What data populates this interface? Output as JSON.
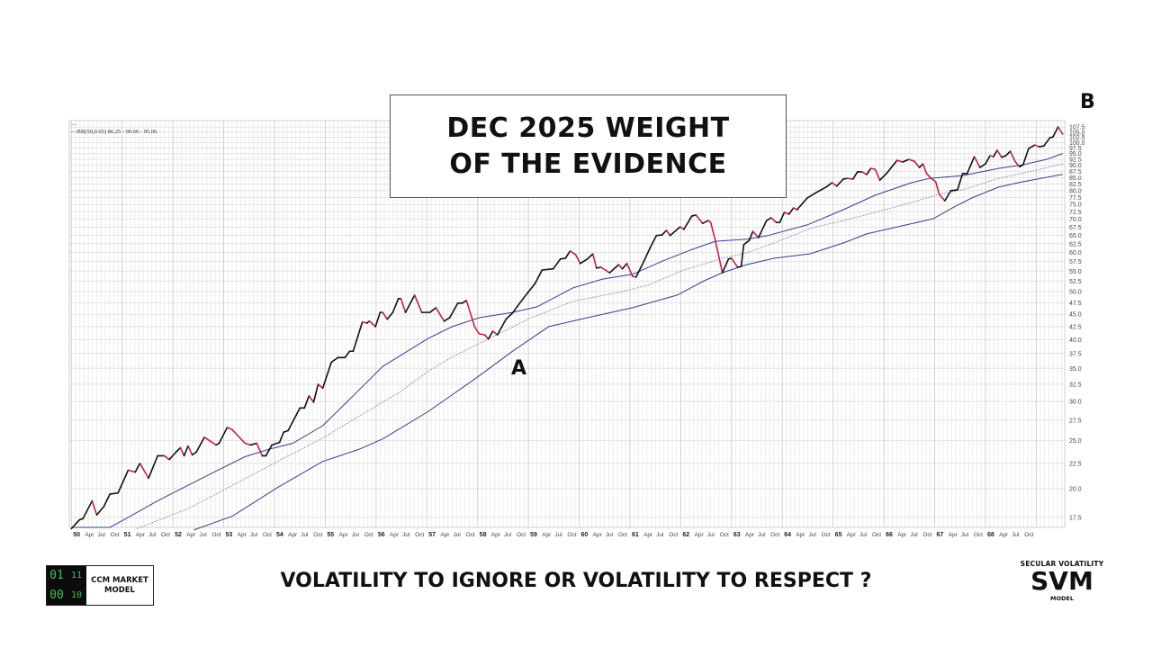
{
  "slide": {
    "title_line1": "DEC 2025 WEIGHT",
    "title_line2": "OF THE EVIDENCE",
    "marker_a": "A",
    "marker_b": "B",
    "bottom_title": "VOLATILITY TO IGNORE OR VOLATILITY TO RESPECT ?",
    "ccm_logo": {
      "digits": [
        "01",
        "11",
        "00",
        "10"
      ],
      "line1": "CCM MARKET",
      "line2": "MODEL"
    },
    "svm_logo": {
      "top": "SECULAR  VOLATILITY",
      "big": "SVM",
      "sub": "MODEL"
    }
  },
  "chart_data": {
    "type": "line",
    "title": "",
    "legend": {
      "line1": "—",
      "line2": "—BB(50,0.65) 86.25 - 90.66 - 95.06"
    },
    "y_scale": "log",
    "ylim": [
      16.7,
      110.8
    ],
    "xlim": [
      1949.96,
      1969.56
    ],
    "grid": true,
    "y_axis_position": "right",
    "y_ticks": [
      "17.5",
      "20.0",
      "22.5",
      "25.0",
      "27.5",
      "30.0",
      "32.5",
      "35.0",
      "37.5",
      "40.0",
      "42.5",
      "45.0",
      "47.5",
      "50.0",
      "52.5",
      "55.0",
      "57.5",
      "60.0",
      "62.5",
      "65.0",
      "67.5",
      "70.0",
      "72.5",
      "75.0",
      "77.5",
      "80.0",
      "82.5",
      "85.0",
      "87.5",
      "90.0",
      "92.5",
      "95.0",
      "97.5",
      "100.0",
      "102.5",
      "105.0",
      "107.5"
    ],
    "x_year_labels": [
      "50",
      "51",
      "52",
      "53",
      "54",
      "55",
      "56",
      "57",
      "58",
      "59",
      "60",
      "61",
      "62",
      "63",
      "64",
      "65",
      "66",
      "67",
      "68"
    ],
    "x_month_labels": [
      "Apr",
      "Jul",
      "Oct"
    ],
    "colors": {
      "rising": "#111111",
      "falling": "#c4204c",
      "band": "#3b3b8f",
      "band_mid": "#7a7a9a",
      "grid": "#e2e2e2"
    },
    "price": [
      [
        1950.0,
        16.6
      ],
      [
        1950.16,
        17.3
      ],
      [
        1950.23,
        17.4
      ],
      [
        1950.41,
        18.9
      ],
      [
        1950.5,
        17.7
      ],
      [
        1950.64,
        18.4
      ],
      [
        1950.76,
        19.5
      ],
      [
        1950.92,
        19.6
      ],
      [
        1951.12,
        21.8
      ],
      [
        1951.26,
        21.6
      ],
      [
        1951.35,
        22.5
      ],
      [
        1951.52,
        21.0
      ],
      [
        1951.7,
        23.3
      ],
      [
        1951.83,
        23.3
      ],
      [
        1951.93,
        22.9
      ],
      [
        1952.06,
        23.7
      ],
      [
        1952.15,
        24.2
      ],
      [
        1952.22,
        23.3
      ],
      [
        1952.3,
        24.4
      ],
      [
        1952.38,
        23.4
      ],
      [
        1952.46,
        23.7
      ],
      [
        1952.62,
        25.4
      ],
      [
        1952.85,
        24.5
      ],
      [
        1952.91,
        24.7
      ],
      [
        1953.07,
        26.6
      ],
      [
        1953.17,
        26.3
      ],
      [
        1953.42,
        24.7
      ],
      [
        1953.53,
        24.5
      ],
      [
        1953.65,
        24.7
      ],
      [
        1953.76,
        23.3
      ],
      [
        1953.83,
        23.3
      ],
      [
        1953.95,
        24.5
      ],
      [
        1954.1,
        24.8
      ],
      [
        1954.18,
        26.0
      ],
      [
        1954.27,
        26.2
      ],
      [
        1954.5,
        29.1
      ],
      [
        1954.59,
        29.1
      ],
      [
        1954.68,
        30.8
      ],
      [
        1954.77,
        29.9
      ],
      [
        1954.86,
        32.5
      ],
      [
        1954.95,
        31.9
      ],
      [
        1955.12,
        36.0
      ],
      [
        1955.25,
        36.8
      ],
      [
        1955.39,
        36.8
      ],
      [
        1955.48,
        37.9
      ],
      [
        1955.55,
        37.9
      ],
      [
        1955.73,
        43.4
      ],
      [
        1955.82,
        43.2
      ],
      [
        1955.87,
        43.6
      ],
      [
        1955.99,
        42.5
      ],
      [
        1956.08,
        45.4
      ],
      [
        1956.13,
        45.4
      ],
      [
        1956.22,
        44.0
      ],
      [
        1956.33,
        45.4
      ],
      [
        1956.44,
        48.4
      ],
      [
        1956.49,
        48.4
      ],
      [
        1956.58,
        45.4
      ],
      [
        1956.76,
        49.2
      ],
      [
        1956.9,
        45.4
      ],
      [
        1957.06,
        45.4
      ],
      [
        1957.18,
        46.4
      ],
      [
        1957.34,
        43.6
      ],
      [
        1957.45,
        44.3
      ],
      [
        1957.61,
        47.4
      ],
      [
        1957.7,
        47.4
      ],
      [
        1957.78,
        48.0
      ],
      [
        1957.94,
        42.5
      ],
      [
        1958.03,
        41.1
      ],
      [
        1958.14,
        40.9
      ],
      [
        1958.21,
        40.1
      ],
      [
        1958.3,
        41.6
      ],
      [
        1958.39,
        40.9
      ],
      [
        1958.56,
        44.0
      ],
      [
        1958.69,
        45.3
      ],
      [
        1958.83,
        47.4
      ],
      [
        1958.99,
        49.8
      ],
      [
        1959.13,
        51.9
      ],
      [
        1959.27,
        55.3
      ],
      [
        1959.49,
        55.6
      ],
      [
        1959.63,
        58.2
      ],
      [
        1959.73,
        58.4
      ],
      [
        1959.82,
        60.4
      ],
      [
        1959.93,
        59.4
      ],
      [
        1960.02,
        57.0
      ],
      [
        1960.16,
        58.2
      ],
      [
        1960.27,
        59.6
      ],
      [
        1960.34,
        55.8
      ],
      [
        1960.43,
        56.0
      ],
      [
        1960.6,
        54.6
      ],
      [
        1960.78,
        56.7
      ],
      [
        1960.85,
        55.6
      ],
      [
        1960.94,
        57.0
      ],
      [
        1961.05,
        53.7
      ],
      [
        1961.12,
        53.5
      ],
      [
        1961.26,
        57.2
      ],
      [
        1961.4,
        61.4
      ],
      [
        1961.52,
        64.9
      ],
      [
        1961.63,
        65.1
      ],
      [
        1961.72,
        66.5
      ],
      [
        1961.79,
        64.9
      ],
      [
        1961.99,
        67.6
      ],
      [
        1962.06,
        66.8
      ],
      [
        1962.22,
        71.1
      ],
      [
        1962.3,
        71.4
      ],
      [
        1962.43,
        68.7
      ],
      [
        1962.54,
        69.6
      ],
      [
        1962.59,
        69.0
      ],
      [
        1962.68,
        63.5
      ],
      [
        1962.82,
        54.6
      ],
      [
        1962.94,
        58.2
      ],
      [
        1963.0,
        58.4
      ],
      [
        1963.12,
        56.0
      ],
      [
        1963.19,
        56.2
      ],
      [
        1963.24,
        62.2
      ],
      [
        1963.35,
        63.5
      ],
      [
        1963.42,
        66.2
      ],
      [
        1963.53,
        64.3
      ],
      [
        1963.69,
        69.6
      ],
      [
        1963.78,
        70.5
      ],
      [
        1963.88,
        69.0
      ],
      [
        1963.95,
        69.0
      ],
      [
        1964.04,
        72.3
      ],
      [
        1964.13,
        71.7
      ],
      [
        1964.22,
        73.8
      ],
      [
        1964.29,
        73.2
      ],
      [
        1964.49,
        77.3
      ],
      [
        1964.66,
        79.2
      ],
      [
        1964.86,
        81.3
      ],
      [
        1964.98,
        83.0
      ],
      [
        1965.07,
        81.7
      ],
      [
        1965.2,
        84.4
      ],
      [
        1965.28,
        84.7
      ],
      [
        1965.39,
        84.4
      ],
      [
        1965.48,
        87.3
      ],
      [
        1965.57,
        87.3
      ],
      [
        1965.66,
        86.2
      ],
      [
        1965.74,
        88.7
      ],
      [
        1965.83,
        88.3
      ],
      [
        1965.92,
        84.0
      ],
      [
        1966.05,
        86.6
      ],
      [
        1966.26,
        92.1
      ],
      [
        1966.37,
        91.4
      ],
      [
        1966.49,
        92.5
      ],
      [
        1966.6,
        91.7
      ],
      [
        1966.7,
        89.1
      ],
      [
        1966.77,
        90.6
      ],
      [
        1966.84,
        86.6
      ],
      [
        1966.93,
        84.7
      ],
      [
        1967.02,
        83.4
      ],
      [
        1967.09,
        78.6
      ],
      [
        1967.2,
        76.3
      ],
      [
        1967.32,
        80.0
      ],
      [
        1967.45,
        80.3
      ],
      [
        1967.55,
        86.6
      ],
      [
        1967.64,
        86.6
      ],
      [
        1967.78,
        93.7
      ],
      [
        1967.89,
        89.1
      ],
      [
        1968.0,
        90.6
      ],
      [
        1968.09,
        94.1
      ],
      [
        1968.16,
        93.7
      ],
      [
        1968.23,
        96.5
      ],
      [
        1968.32,
        93.4
      ],
      [
        1968.4,
        94.1
      ],
      [
        1968.49,
        96.1
      ],
      [
        1968.58,
        91.7
      ],
      [
        1968.67,
        89.4
      ],
      [
        1968.74,
        90.2
      ],
      [
        1968.85,
        97.3
      ],
      [
        1968.97,
        98.9
      ],
      [
        1969.06,
        98.1
      ],
      [
        1969.15,
        98.5
      ],
      [
        1969.27,
        102.3
      ],
      [
        1969.33,
        102.7
      ],
      [
        1969.43,
        107.6
      ],
      [
        1969.52,
        104.0
      ]
    ],
    "bb_upper": [
      [
        1950.0,
        16.7
      ],
      [
        1950.76,
        16.7
      ],
      [
        1951.12,
        17.5
      ],
      [
        1951.7,
        18.9
      ],
      [
        1952.29,
        20.3
      ],
      [
        1952.89,
        21.8
      ],
      [
        1953.42,
        23.2
      ],
      [
        1953.88,
        24.0
      ],
      [
        1954.36,
        24.7
      ],
      [
        1954.95,
        26.8
      ],
      [
        1955.55,
        30.8
      ],
      [
        1956.13,
        35.3
      ],
      [
        1957.02,
        40.2
      ],
      [
        1957.5,
        42.5
      ],
      [
        1958.03,
        44.3
      ],
      [
        1958.69,
        45.4
      ],
      [
        1959.17,
        46.6
      ],
      [
        1959.88,
        50.9
      ],
      [
        1960.46,
        53.0
      ],
      [
        1961.05,
        54.2
      ],
      [
        1961.65,
        57.7
      ],
      [
        1962.23,
        60.9
      ],
      [
        1962.68,
        63.2
      ],
      [
        1963.3,
        63.8
      ],
      [
        1963.71,
        64.9
      ],
      [
        1964.49,
        68.2
      ],
      [
        1965.2,
        73.2
      ],
      [
        1965.83,
        78.3
      ],
      [
        1966.54,
        83.0
      ],
      [
        1966.9,
        84.7
      ],
      [
        1967.55,
        85.8
      ],
      [
        1968.26,
        88.7
      ],
      [
        1968.74,
        90.2
      ],
      [
        1969.2,
        92.5
      ],
      [
        1969.52,
        95.06
      ]
    ],
    "bb_middle": [
      [
        1951.29,
        16.6
      ],
      [
        1952.29,
        18.2
      ],
      [
        1953.17,
        20.3
      ],
      [
        1954.06,
        22.7
      ],
      [
        1954.95,
        25.3
      ],
      [
        1955.66,
        28.0
      ],
      [
        1956.44,
        31.2
      ],
      [
        1957.02,
        34.5
      ],
      [
        1957.5,
        36.9
      ],
      [
        1958.21,
        40.1
      ],
      [
        1958.99,
        44.0
      ],
      [
        1959.88,
        47.8
      ],
      [
        1960.76,
        49.8
      ],
      [
        1961.35,
        51.5
      ],
      [
        1962.06,
        55.3
      ],
      [
        1962.82,
        58.4
      ],
      [
        1963.3,
        59.9
      ],
      [
        1963.83,
        62.7
      ],
      [
        1964.59,
        67.3
      ],
      [
        1965.2,
        69.6
      ],
      [
        1965.83,
        72.3
      ],
      [
        1966.54,
        75.7
      ],
      [
        1967.02,
        78.3
      ],
      [
        1967.61,
        80.6
      ],
      [
        1968.26,
        84.7
      ],
      [
        1968.92,
        87.6
      ],
      [
        1969.52,
        90.66
      ]
    ],
    "bb_lower": [
      [
        1952.41,
        16.5
      ],
      [
        1953.17,
        17.6
      ],
      [
        1954.06,
        20.1
      ],
      [
        1954.95,
        22.7
      ],
      [
        1955.66,
        24.0
      ],
      [
        1956.13,
        25.2
      ],
      [
        1957.02,
        28.6
      ],
      [
        1957.98,
        33.5
      ],
      [
        1958.69,
        37.9
      ],
      [
        1959.4,
        42.5
      ],
      [
        1960.16,
        44.3
      ],
      [
        1961.05,
        46.4
      ],
      [
        1961.93,
        49.2
      ],
      [
        1962.46,
        52.6
      ],
      [
        1962.82,
        54.6
      ],
      [
        1963.3,
        56.7
      ],
      [
        1963.83,
        58.4
      ],
      [
        1964.54,
        59.6
      ],
      [
        1965.2,
        62.7
      ],
      [
        1965.66,
        65.4
      ],
      [
        1966.44,
        68.2
      ],
      [
        1966.97,
        70.2
      ],
      [
        1967.38,
        74.1
      ],
      [
        1967.73,
        77.3
      ],
      [
        1968.26,
        81.3
      ],
      [
        1968.74,
        83.4
      ],
      [
        1969.52,
        86.25
      ]
    ]
  }
}
